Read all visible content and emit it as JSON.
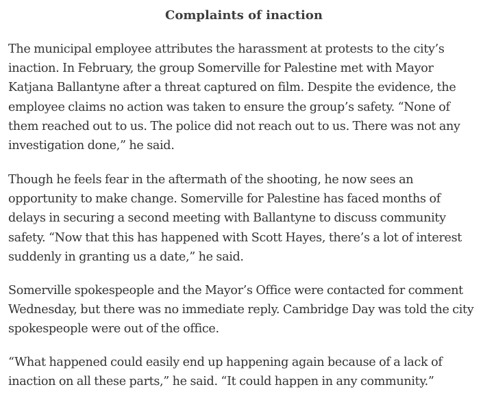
{
  "section": {
    "heading": "Complaints of inaction"
  },
  "paragraphs": [
    "The municipal employee attributes the harassment at protests to the city’s inaction. In February, the group Somerville for Palestine met with Mayor Katjana Ballantyne after a threat captured on film. Despite the evidence, the employee claims no action was taken to ensure the group’s safety. “None of them reached out to us. The police did not reach out to us. There was not any investigation done,” he said.",
    "Though he feels fear in the aftermath of the shooting, he now sees an opportunity to make change. Somerville for Palestine has faced months of delays in securing a second meeting with Ballantyne to discuss community safety. “Now that this has happened with Scott Hayes, there’s a lot of interest suddenly in granting us a date,” he said.",
    "Somerville spokespeople and the Mayor’s Office were contacted for comment Wednesday, but there was no immediate reply. Cambridge Day was told the city spokespeople were out of the office.",
    "“What happened could easily end up happening again because of a lack of inaction on all these parts,” he said. “It could happen in any community.”"
  ]
}
